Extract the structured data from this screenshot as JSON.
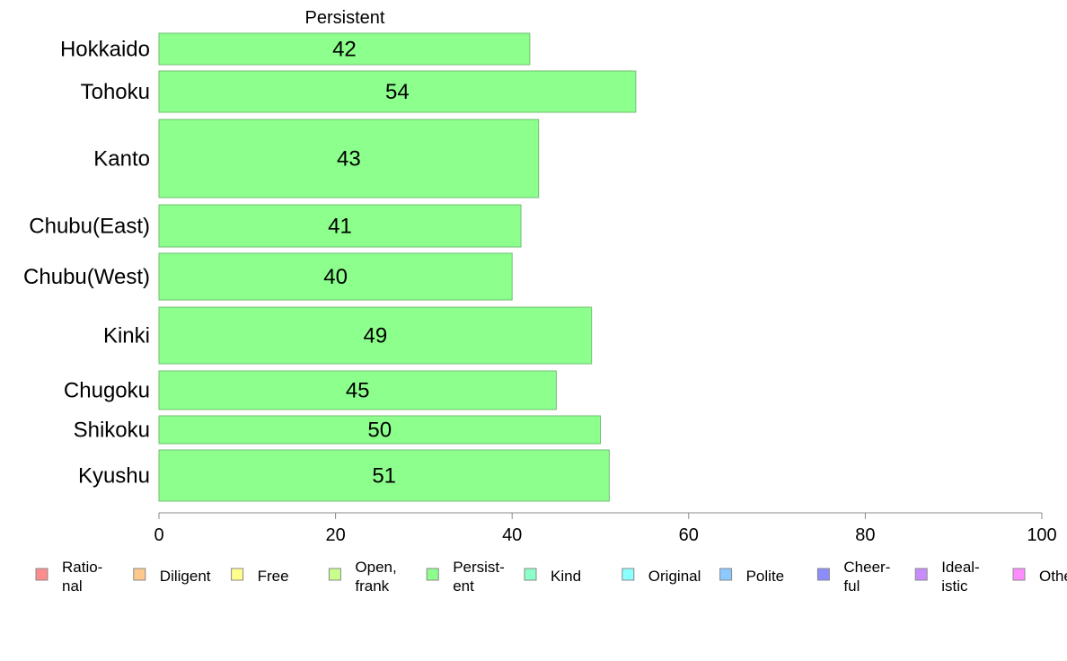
{
  "chart_data": {
    "type": "bar",
    "orientation": "horizontal",
    "title": "Persistent",
    "categories": [
      "Hokkaido",
      "Tohoku",
      "Kanto",
      "Chubu(East)",
      "Chubu(West)",
      "Kinki",
      "Chugoku",
      "Shikoku",
      "Kyushu"
    ],
    "values": [
      42,
      54,
      43,
      41,
      40,
      49,
      45,
      50,
      51
    ],
    "bar_color": "#8cff8c",
    "bar_border_color": "#6fbf6f",
    "xlim": [
      0,
      100
    ],
    "xticks": [
      "0",
      "20",
      "40",
      "60",
      "80",
      "100"
    ],
    "grid": false,
    "legend_position": "bottom",
    "legend": [
      {
        "lines": [
          "Ratio-",
          "nal"
        ],
        "color": "#ff8c8c"
      },
      {
        "lines": [
          "Diligent"
        ],
        "color": "#ffc98c"
      },
      {
        "lines": [
          "Free"
        ],
        "color": "#ffff8c"
      },
      {
        "lines": [
          "Open,",
          "frank"
        ],
        "color": "#c9ff8c"
      },
      {
        "lines": [
          "Persist-",
          "ent"
        ],
        "color": "#8cff8c"
      },
      {
        "lines": [
          "Kind"
        ],
        "color": "#8cffc9"
      },
      {
        "lines": [
          "Original"
        ],
        "color": "#8cffff"
      },
      {
        "lines": [
          "Polite"
        ],
        "color": "#8cc9ff"
      },
      {
        "lines": [
          "Cheer-",
          "ful"
        ],
        "color": "#8c8cff"
      },
      {
        "lines": [
          "Ideal-",
          "istic"
        ],
        "color": "#c98cff"
      },
      {
        "lines": [
          "Othe"
        ],
        "color": "#ff8cff"
      }
    ]
  }
}
